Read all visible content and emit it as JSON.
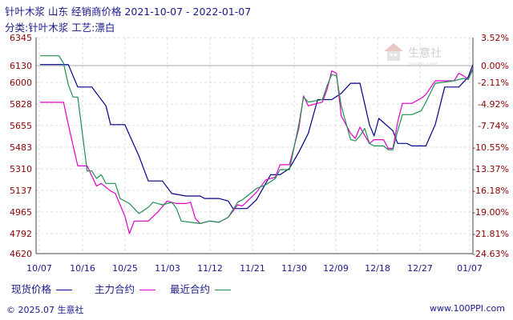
{
  "header": {
    "title": "针叶木浆 山东 经销商价格 2021-10-07 - 2022-01-07",
    "subtitle": "分类:针叶木浆 工艺:漂白"
  },
  "watermark": {
    "text": "生意社",
    "sub": "100PPI.COM"
  },
  "footer": {
    "copyright": "© 2025.07 生意社",
    "site": "www.100PPI.com"
  },
  "colors": {
    "spot": "#00008b",
    "main": "#e000c8",
    "recent": "#1f8f4e",
    "axis": "#8b0000"
  },
  "chart_data": {
    "type": "line",
    "x_labels": [
      "10/07",
      "10/16",
      "10/25",
      "11/03",
      "11/12",
      "11/21",
      "11/30",
      "12/09",
      "12/18",
      "12/27",
      "01/07"
    ],
    "left_ticks": [
      "6345",
      "6130",
      "6000",
      "5828",
      "5655",
      "5483",
      "5310",
      "5137",
      "4965",
      "4792",
      "4620"
    ],
    "right_ticks": [
      "3.52%",
      "0.00%",
      "-2.11%",
      "-4.92%",
      "-7.74%",
      "-10.55%",
      "-13.37%",
      "-16.18%",
      "-19.00%",
      "-21.81%",
      "-24.63%"
    ],
    "ylim": [
      4620,
      6345
    ],
    "xlim": [
      0,
      92
    ],
    "series": [
      {
        "name": "现货价格",
        "color": "#00008b",
        "points": [
          [
            0,
            6130
          ],
          [
            6,
            6130
          ],
          [
            8,
            5950
          ],
          [
            11,
            5950
          ],
          [
            14,
            5800
          ],
          [
            15,
            5650
          ],
          [
            18,
            5650
          ],
          [
            21,
            5400
          ],
          [
            23,
            5200
          ],
          [
            26,
            5200
          ],
          [
            28,
            5100
          ],
          [
            31,
            5080
          ],
          [
            34,
            5080
          ],
          [
            35,
            5060
          ],
          [
            38,
            5060
          ],
          [
            40,
            5040
          ],
          [
            41,
            4980
          ],
          [
            44,
            4980
          ],
          [
            46,
            5050
          ],
          [
            49,
            5250
          ],
          [
            51,
            5250
          ],
          [
            53,
            5300
          ],
          [
            55,
            5430
          ],
          [
            57,
            5580
          ],
          [
            59,
            5850
          ],
          [
            62,
            5850
          ],
          [
            64,
            5900
          ],
          [
            66,
            5980
          ],
          [
            68,
            5980
          ],
          [
            70,
            5650
          ],
          [
            71,
            5560
          ],
          [
            72,
            5700
          ],
          [
            75,
            5600
          ],
          [
            76,
            5500
          ],
          [
            78,
            5500
          ],
          [
            79,
            5480
          ],
          [
            82,
            5480
          ],
          [
            84,
            5650
          ],
          [
            86,
            5950
          ],
          [
            89,
            5950
          ],
          [
            91,
            6030
          ],
          [
            92,
            6130
          ]
        ]
      },
      {
        "name": "主力合约",
        "color": "#e000c8",
        "points": [
          [
            0,
            5828
          ],
          [
            5,
            5828
          ],
          [
            6,
            5650
          ],
          [
            8,
            5320
          ],
          [
            10,
            5320
          ],
          [
            11,
            5240
          ],
          [
            12,
            5160
          ],
          [
            13,
            5180
          ],
          [
            15,
            5120
          ],
          [
            16,
            5100
          ],
          [
            18,
            4920
          ],
          [
            19,
            4780
          ],
          [
            20,
            4880
          ],
          [
            23,
            4880
          ],
          [
            25,
            4950
          ],
          [
            27,
            5040
          ],
          [
            29,
            5020
          ],
          [
            31,
            5020
          ],
          [
            32,
            5030
          ],
          [
            33,
            4900
          ],
          [
            34,
            4860
          ],
          [
            36,
            4880
          ],
          [
            38,
            4870
          ],
          [
            40,
            4910
          ],
          [
            42,
            5010
          ],
          [
            43,
            5000
          ],
          [
            46,
            5110
          ],
          [
            48,
            5210
          ],
          [
            50,
            5230
          ],
          [
            51,
            5330
          ],
          [
            53,
            5330
          ],
          [
            55,
            5620
          ],
          [
            56,
            5880
          ],
          [
            57,
            5800
          ],
          [
            60,
            5830
          ],
          [
            61,
            5930
          ],
          [
            62,
            6080
          ],
          [
            63,
            6060
          ],
          [
            64,
            5720
          ],
          [
            66,
            5580
          ],
          [
            67,
            5540
          ],
          [
            68,
            5630
          ],
          [
            70,
            5500
          ],
          [
            71,
            5530
          ],
          [
            73,
            5530
          ],
          [
            74,
            5460
          ],
          [
            75,
            5460
          ],
          [
            76,
            5670
          ],
          [
            77,
            5820
          ],
          [
            79,
            5820
          ],
          [
            81,
            5860
          ],
          [
            82,
            5890
          ],
          [
            84,
            6000
          ],
          [
            86,
            6000
          ],
          [
            88,
            6000
          ],
          [
            89,
            6060
          ],
          [
            90,
            6040
          ],
          [
            91,
            6010
          ],
          [
            92,
            6100
          ]
        ]
      },
      {
        "name": "最近合约",
        "color": "#1f8f4e",
        "points": [
          [
            0,
            6200
          ],
          [
            4,
            6200
          ],
          [
            5,
            6140
          ],
          [
            6,
            5970
          ],
          [
            7,
            5870
          ],
          [
            8,
            5870
          ],
          [
            9,
            5580
          ],
          [
            10,
            5280
          ],
          [
            11,
            5280
          ],
          [
            12,
            5220
          ],
          [
            13,
            5250
          ],
          [
            14,
            5180
          ],
          [
            16,
            5180
          ],
          [
            17,
            5060
          ],
          [
            19,
            5020
          ],
          [
            20,
            4980
          ],
          [
            21,
            4940
          ],
          [
            23,
            4990
          ],
          [
            24,
            5030
          ],
          [
            26,
            5010
          ],
          [
            28,
            5030
          ],
          [
            29,
            4980
          ],
          [
            30,
            4880
          ],
          [
            32,
            4870
          ],
          [
            34,
            4860
          ],
          [
            36,
            4880
          ],
          [
            38,
            4870
          ],
          [
            40,
            4910
          ],
          [
            42,
            5030
          ],
          [
            43,
            5050
          ],
          [
            44,
            5080
          ],
          [
            46,
            5140
          ],
          [
            48,
            5170
          ],
          [
            50,
            5220
          ],
          [
            51,
            5290
          ],
          [
            53,
            5290
          ],
          [
            55,
            5650
          ],
          [
            56,
            5870
          ],
          [
            57,
            5830
          ],
          [
            60,
            5850
          ],
          [
            61,
            5960
          ],
          [
            62,
            6050
          ],
          [
            63,
            6040
          ],
          [
            64,
            5800
          ],
          [
            66,
            5530
          ],
          [
            67,
            5520
          ],
          [
            68,
            5560
          ],
          [
            69,
            5620
          ],
          [
            70,
            5500
          ],
          [
            71,
            5480
          ],
          [
            73,
            5480
          ],
          [
            74,
            5450
          ],
          [
            75,
            5450
          ],
          [
            76,
            5600
          ],
          [
            77,
            5730
          ],
          [
            79,
            5730
          ],
          [
            81,
            5760
          ],
          [
            82,
            5830
          ],
          [
            84,
            5980
          ],
          [
            86,
            5990
          ],
          [
            88,
            6000
          ],
          [
            89,
            6010
          ],
          [
            90,
            6020
          ],
          [
            91,
            6010
          ],
          [
            92,
            6090
          ]
        ]
      }
    ]
  }
}
